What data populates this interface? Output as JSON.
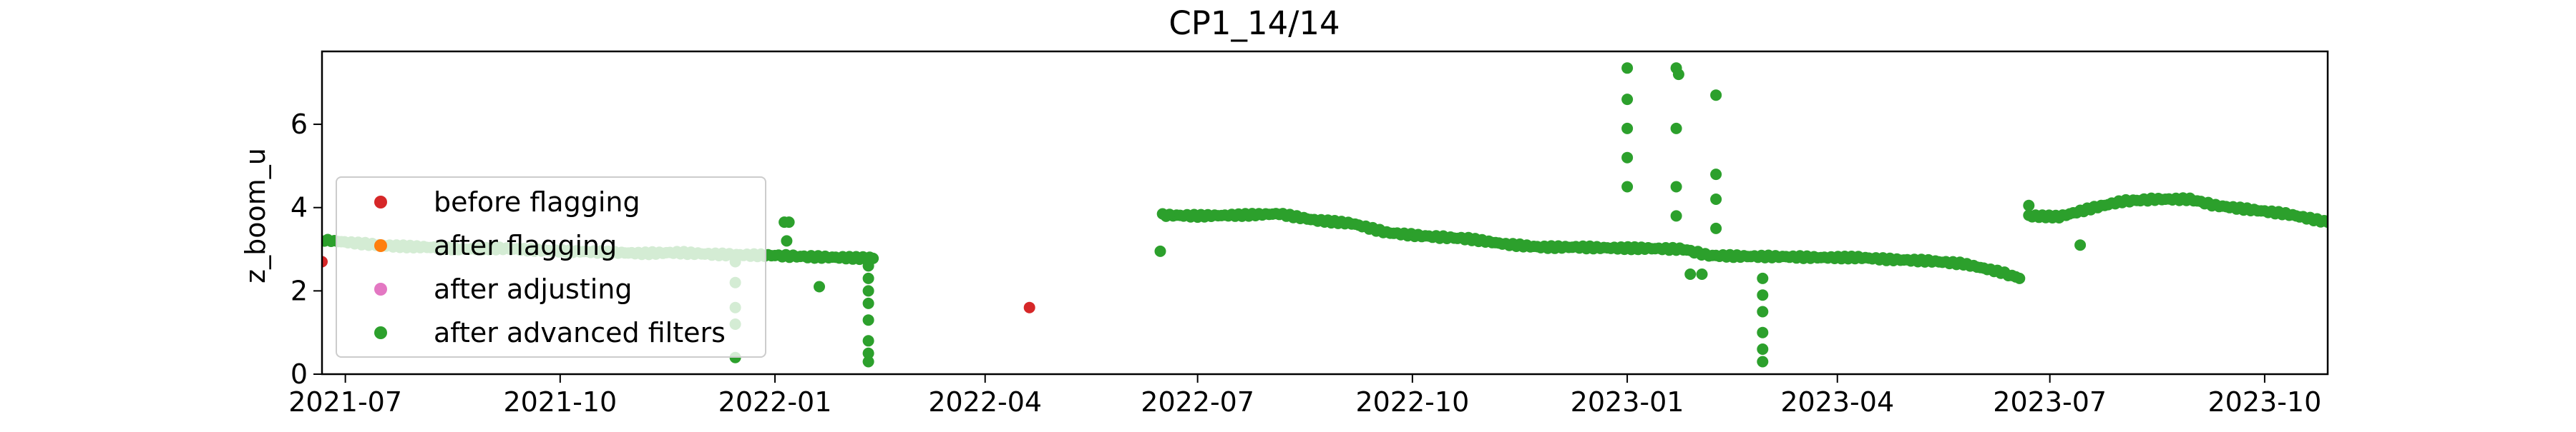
{
  "chart_data": {
    "type": "scatter",
    "title": "CP1_14/14",
    "xlabel": "",
    "ylabel": "z_boom_u",
    "xlim": [
      "2021-06-21",
      "2023-10-28"
    ],
    "ylim": [
      0,
      7.75
    ],
    "x_ticks": [
      {
        "date": "2021-07-01",
        "label": "2021-07"
      },
      {
        "date": "2021-10-01",
        "label": "2021-10"
      },
      {
        "date": "2022-01-01",
        "label": "2022-01"
      },
      {
        "date": "2022-04-01",
        "label": "2022-04"
      },
      {
        "date": "2022-07-01",
        "label": "2022-07"
      },
      {
        "date": "2022-10-01",
        "label": "2022-10"
      },
      {
        "date": "2023-01-01",
        "label": "2023-01"
      },
      {
        "date": "2023-04-01",
        "label": "2023-04"
      },
      {
        "date": "2023-07-01",
        "label": "2023-07"
      },
      {
        "date": "2023-10-01",
        "label": "2023-10"
      }
    ],
    "y_ticks": [
      0,
      2,
      4,
      6
    ],
    "grid": false,
    "legend": {
      "placement": "lower-left"
    },
    "series": [
      {
        "name": "before flagging",
        "color": "#d62728",
        "points": [
          {
            "x": "2021-06-21",
            "y": 2.7
          },
          {
            "x": "2022-04-20",
            "y": 1.6
          }
        ]
      },
      {
        "name": "after flagging",
        "color": "#ff7f0e",
        "points": []
      },
      {
        "name": "after adjusting",
        "color": "#e377c2",
        "points": []
      },
      {
        "name": "after advanced filters",
        "color": "#2ca02c",
        "segments": [
          {
            "points": [
              [
                "2021-06-22",
                3.22
              ],
              [
                "2021-07-05",
                3.15
              ],
              [
                "2021-07-20",
                3.08
              ],
              [
                "2021-08-05",
                3.05
              ],
              [
                "2021-08-20",
                3.0
              ],
              [
                "2021-09-05",
                3.02
              ],
              [
                "2021-09-20",
                2.98
              ],
              [
                "2021-10-05",
                2.95
              ],
              [
                "2021-10-20",
                2.93
              ],
              [
                "2021-11-05",
                2.9
              ],
              [
                "2021-11-20",
                2.92
              ],
              [
                "2021-12-05",
                2.88
              ],
              [
                "2021-12-20",
                2.86
              ],
              [
                "2022-01-01",
                2.85
              ],
              [
                "2022-01-15",
                2.82
              ],
              [
                "2022-01-30",
                2.8
              ],
              [
                "2022-02-12",
                2.78
              ]
            ]
          },
          {
            "points": [
              [
                "2022-06-16",
                3.82
              ],
              [
                "2022-07-01",
                3.8
              ],
              [
                "2022-07-20",
                3.82
              ],
              [
                "2022-08-05",
                3.85
              ],
              [
                "2022-08-20",
                3.7
              ],
              [
                "2022-09-05",
                3.62
              ],
              [
                "2022-09-20",
                3.4
              ],
              [
                "2022-10-05",
                3.32
              ],
              [
                "2022-10-25",
                3.25
              ],
              [
                "2022-11-10",
                3.12
              ],
              [
                "2022-11-25",
                3.05
              ],
              [
                "2022-12-10",
                3.05
              ],
              [
                "2022-12-25",
                3.03
              ],
              [
                "2023-01-10",
                3.02
              ],
              [
                "2023-01-25",
                3.0
              ],
              [
                "2023-02-05",
                2.85
              ],
              [
                "2023-02-20",
                2.83
              ],
              [
                "2023-03-10",
                2.82
              ],
              [
                "2023-03-25",
                2.8
              ],
              [
                "2023-04-10",
                2.8
              ],
              [
                "2023-04-25",
                2.75
              ],
              [
                "2023-05-10",
                2.72
              ],
              [
                "2023-05-25",
                2.65
              ],
              [
                "2023-06-10",
                2.45
              ],
              [
                "2023-06-18",
                2.3
              ]
            ]
          },
          {
            "points": [
              [
                "2023-06-22",
                3.8
              ],
              [
                "2023-07-05",
                3.78
              ],
              [
                "2023-07-20",
                4.0
              ],
              [
                "2023-08-01",
                4.15
              ],
              [
                "2023-08-15",
                4.2
              ],
              [
                "2023-08-30",
                4.2
              ],
              [
                "2023-09-10",
                4.05
              ],
              [
                "2023-09-25",
                3.95
              ],
              [
                "2023-10-10",
                3.85
              ],
              [
                "2023-10-28",
                3.65
              ]
            ]
          }
        ],
        "points": [
          {
            "x": "2021-12-15",
            "y": 0.4
          },
          {
            "x": "2021-12-15",
            "y": 1.2
          },
          {
            "x": "2021-12-15",
            "y": 1.6
          },
          {
            "x": "2021-12-15",
            "y": 2.2
          },
          {
            "x": "2021-12-15",
            "y": 2.7
          },
          {
            "x": "2022-01-05",
            "y": 3.65
          },
          {
            "x": "2022-01-07",
            "y": 3.65
          },
          {
            "x": "2022-01-06",
            "y": 3.2
          },
          {
            "x": "2022-01-20",
            "y": 2.1
          },
          {
            "x": "2022-02-10",
            "y": 0.3
          },
          {
            "x": "2022-02-10",
            "y": 0.5
          },
          {
            "x": "2022-02-10",
            "y": 0.8
          },
          {
            "x": "2022-02-10",
            "y": 1.3
          },
          {
            "x": "2022-02-10",
            "y": 1.7
          },
          {
            "x": "2022-02-10",
            "y": 2.0
          },
          {
            "x": "2022-02-10",
            "y": 2.3
          },
          {
            "x": "2022-02-10",
            "y": 2.6
          },
          {
            "x": "2022-06-15",
            "y": 2.95
          },
          {
            "x": "2023-01-01",
            "y": 7.35
          },
          {
            "x": "2023-01-01",
            "y": 6.6
          },
          {
            "x": "2023-01-01",
            "y": 5.9
          },
          {
            "x": "2023-01-01",
            "y": 5.2
          },
          {
            "x": "2023-01-01",
            "y": 4.5
          },
          {
            "x": "2023-01-22",
            "y": 7.35
          },
          {
            "x": "2023-01-23",
            "y": 7.2
          },
          {
            "x": "2023-01-22",
            "y": 5.9
          },
          {
            "x": "2023-01-22",
            "y": 4.5
          },
          {
            "x": "2023-01-22",
            "y": 3.8
          },
          {
            "x": "2023-01-28",
            "y": 2.4
          },
          {
            "x": "2023-02-02",
            "y": 2.4
          },
          {
            "x": "2023-02-08",
            "y": 6.7
          },
          {
            "x": "2023-02-08",
            "y": 4.8
          },
          {
            "x": "2023-02-08",
            "y": 4.2
          },
          {
            "x": "2023-02-08",
            "y": 3.5
          },
          {
            "x": "2023-02-28",
            "y": 2.3
          },
          {
            "x": "2023-02-28",
            "y": 1.9
          },
          {
            "x": "2023-02-28",
            "y": 1.5
          },
          {
            "x": "2023-02-28",
            "y": 1.0
          },
          {
            "x": "2023-02-28",
            "y": 0.6
          },
          {
            "x": "2023-02-28",
            "y": 0.3
          },
          {
            "x": "2023-06-22",
            "y": 4.05
          },
          {
            "x": "2023-07-14",
            "y": 3.1
          }
        ]
      }
    ]
  }
}
